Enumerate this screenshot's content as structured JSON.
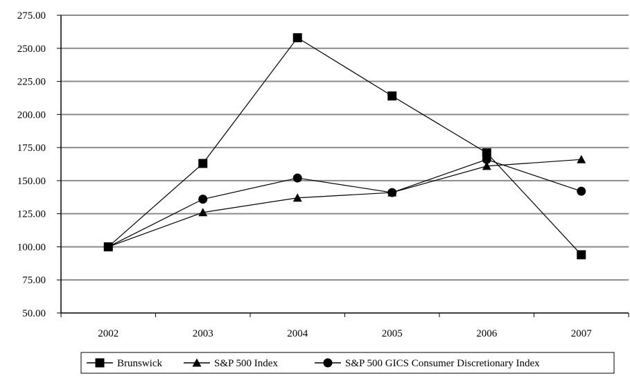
{
  "chart_data": {
    "type": "line",
    "title": "",
    "xlabel": "",
    "ylabel": "",
    "categories": [
      "2002",
      "2003",
      "2004",
      "2005",
      "2006",
      "2007"
    ],
    "ylim": [
      50,
      275
    ],
    "y_ticks": [
      "50.00",
      "75.00",
      "100.00",
      "125.00",
      "150.00",
      "175.00",
      "200.00",
      "225.00",
      "250.00",
      "275.00"
    ],
    "grid": true,
    "legend_position": "bottom",
    "series": [
      {
        "name": "Brunswick",
        "marker": "square",
        "values": [
          100.0,
          163.0,
          258.0,
          214.0,
          171.0,
          94.0
        ]
      },
      {
        "name": "S&P 500 Index",
        "marker": "triangle",
        "values": [
          100.0,
          126.0,
          137.0,
          141.0,
          161.0,
          166.0
        ]
      },
      {
        "name": "S&P 500 GICS Consumer Discretionary Index",
        "marker": "circle",
        "values": [
          100.0,
          136.0,
          152.0,
          141.0,
          166.0,
          142.0
        ]
      }
    ]
  }
}
